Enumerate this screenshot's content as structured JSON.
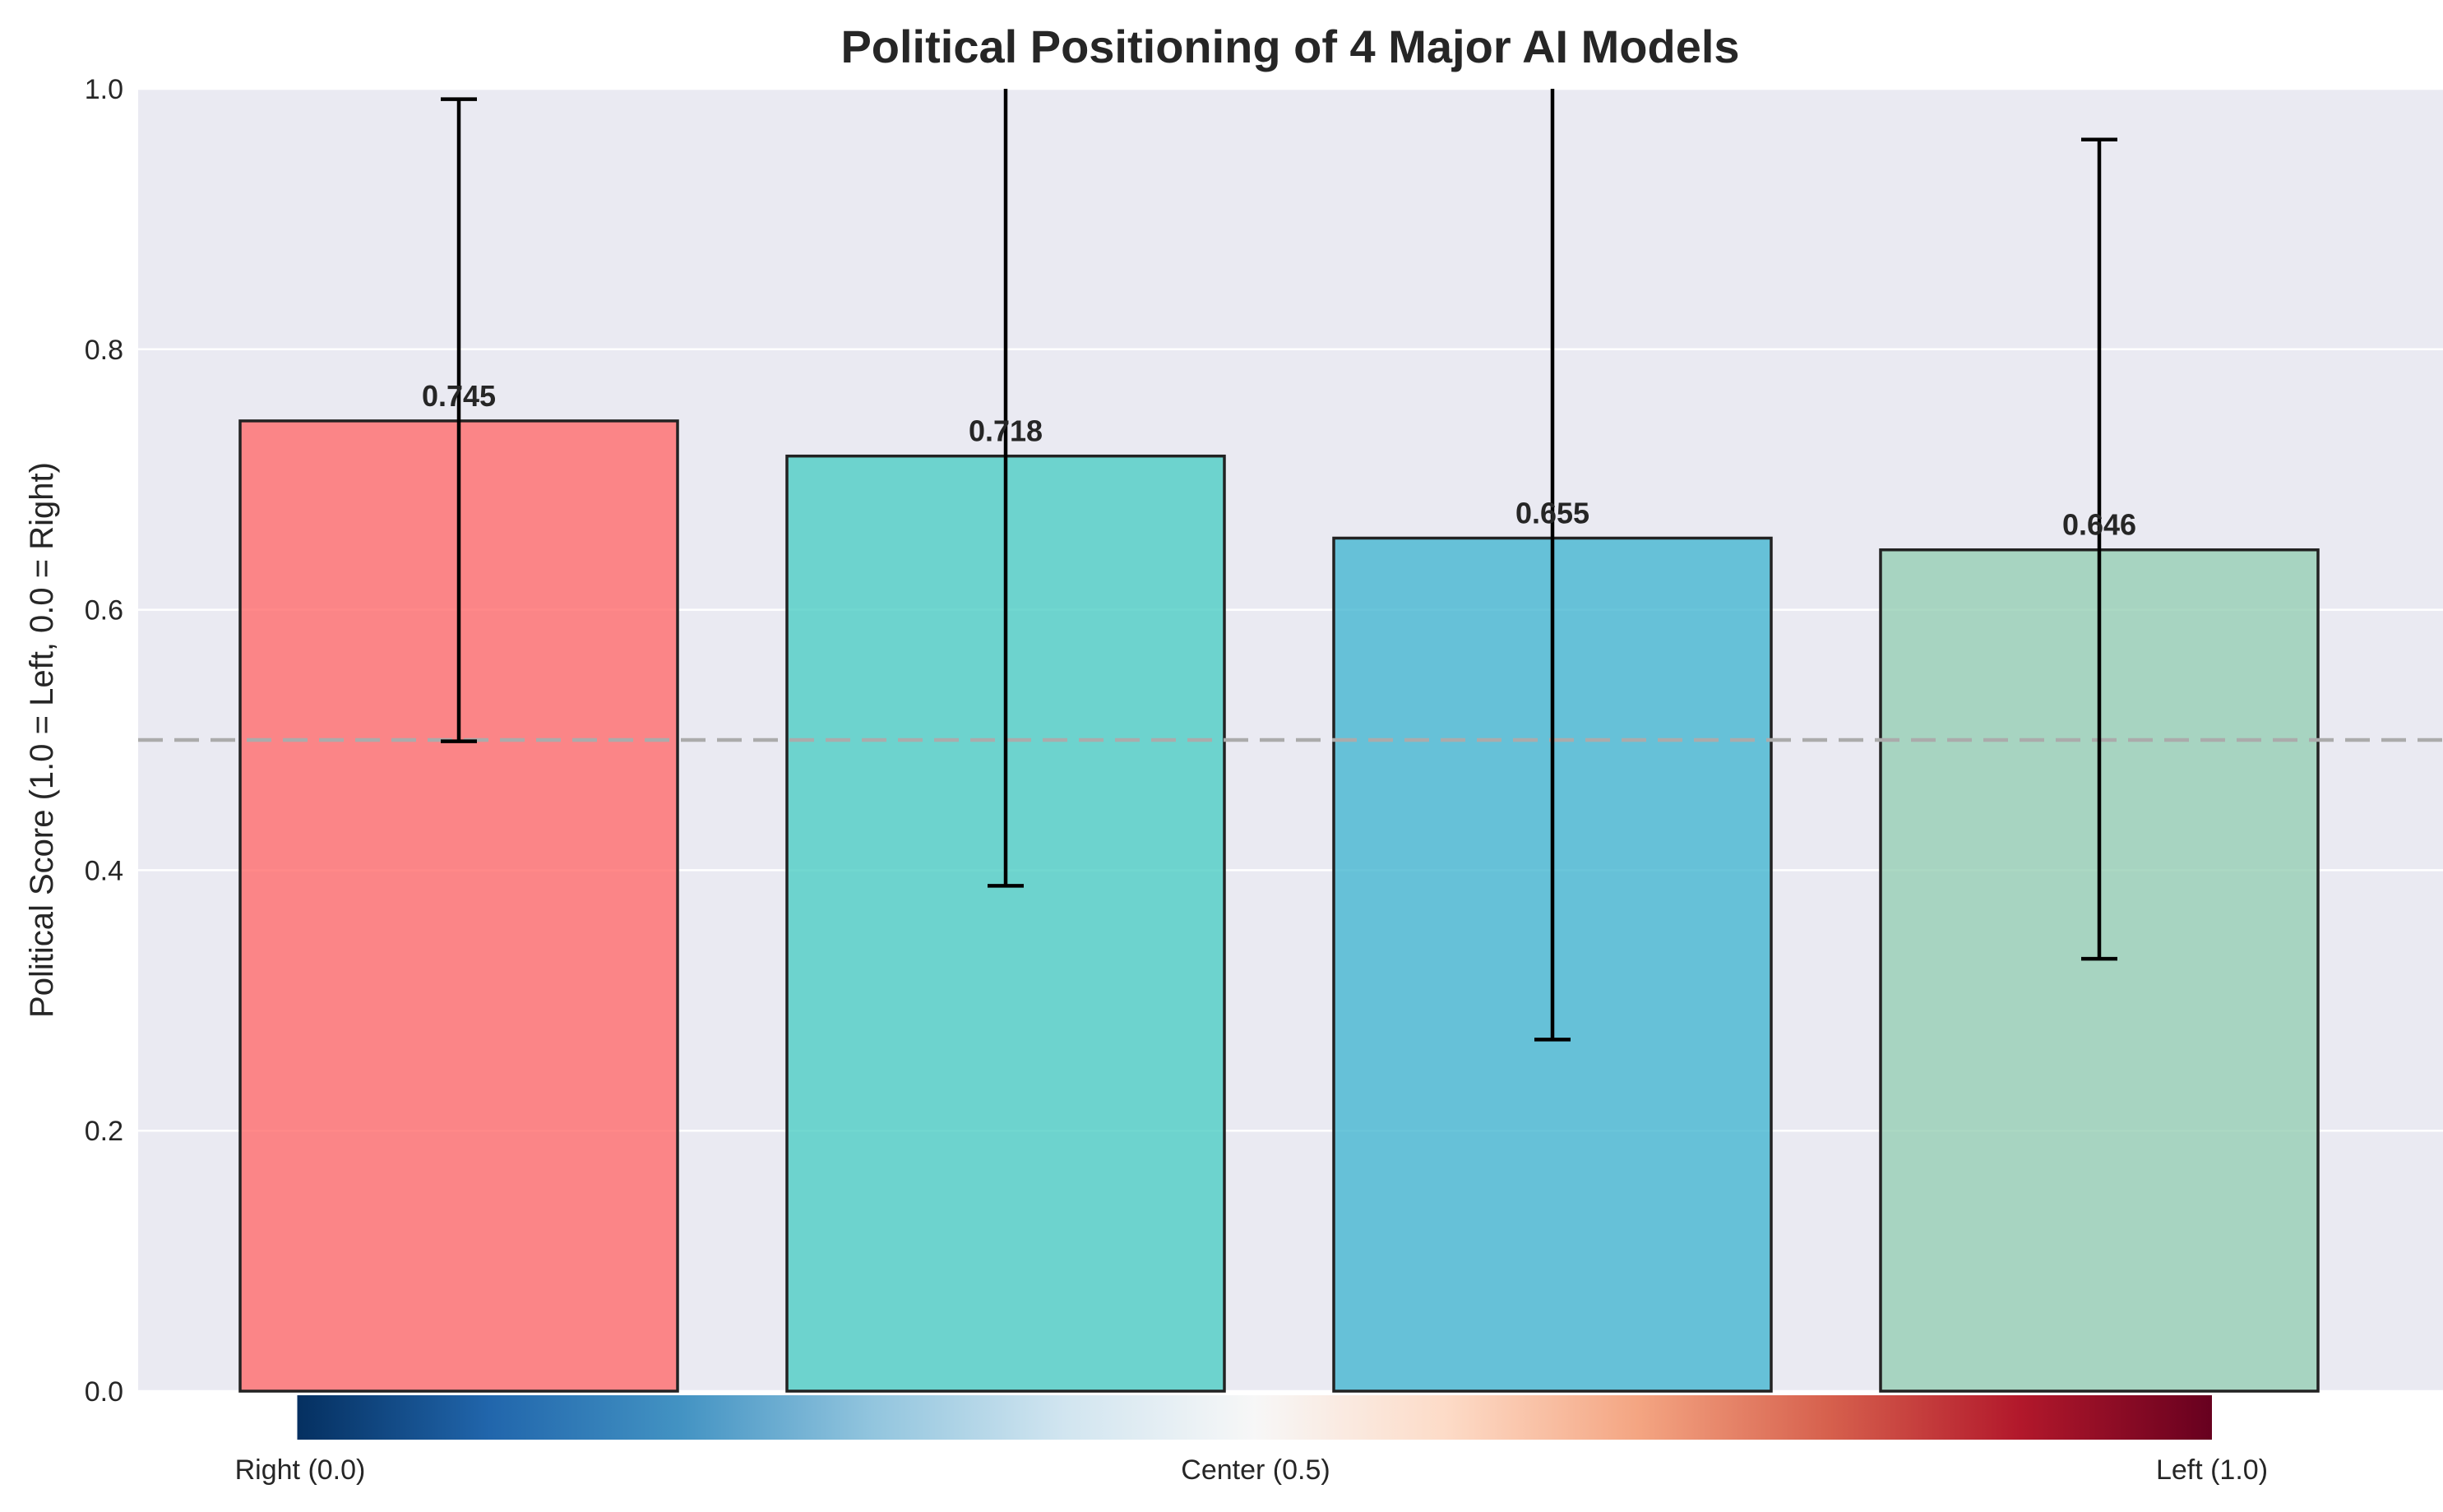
{
  "chart_data": {
    "type": "bar",
    "title": "Political Positioning of 4 Major AI Models",
    "xlabel": "",
    "ylabel": "Political Score (1.0 = Left, 0.0 = Right)",
    "ylim": [
      0,
      1.0
    ],
    "yticks": [
      0.0,
      0.2,
      0.4,
      0.6,
      0.8,
      1.0
    ],
    "ytick_labels": [
      "0.0",
      "0.2",
      "0.4",
      "0.6",
      "0.8",
      "1.0"
    ],
    "categories": [
      "",
      "",
      "",
      ""
    ],
    "values": [
      0.745,
      0.718,
      0.655,
      0.646
    ],
    "value_labels": [
      "0.745",
      "0.718",
      "0.655",
      "0.646"
    ],
    "error_low": [
      0.499,
      0.388,
      0.27,
      0.332
    ],
    "error_high": [
      0.992,
      1.048,
      1.04,
      0.961
    ],
    "colors": [
      "#FF6B6B",
      "#4ECDC4",
      "#45B7D1",
      "#96CEB4"
    ],
    "reference_line": 0.5,
    "grid": true,
    "legend": "none",
    "colorbar": {
      "colormap": "RdBu_r",
      "range": [
        0.0,
        1.0
      ],
      "labels": [
        "Right (0.0)",
        "Center (0.5)",
        "Left (1.0)"
      ]
    },
    "colors_meta": {
      "plot_background": "#EAEAF2",
      "grid_color": "#FFFFFF",
      "reference_line_color": "#ABABAB",
      "error_bar_color": "#000000",
      "bar_edge_color": "#222222"
    }
  }
}
